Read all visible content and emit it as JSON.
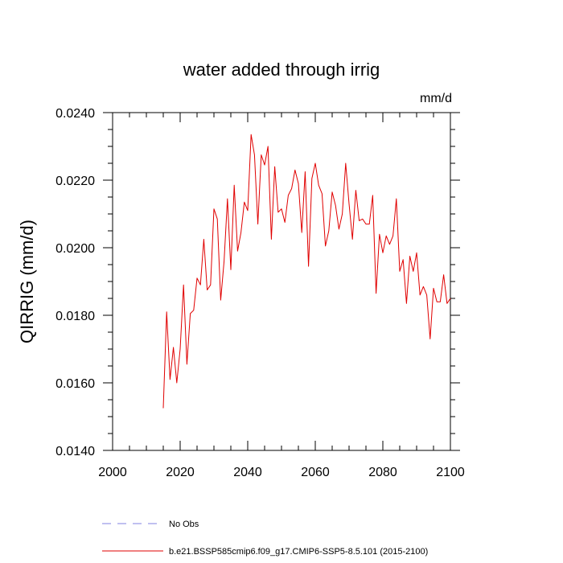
{
  "chart_data": {
    "type": "line",
    "title": "water added through irrig",
    "units_label": "mm/d",
    "ylabel": "QIRRIG  (mm/d)",
    "xlabel": "",
    "xlim": [
      2000,
      2100
    ],
    "ylim": [
      0.014,
      0.024
    ],
    "x_ticks": [
      2000,
      2020,
      2040,
      2060,
      2080,
      2100
    ],
    "x_tick_labels": [
      "2000",
      "2020",
      "2040",
      "2060",
      "2080",
      "2100"
    ],
    "y_ticks": [
      0.014,
      0.016,
      0.018,
      0.02,
      0.022,
      0.024
    ],
    "y_tick_labels": [
      "0.0140",
      "0.0160",
      "0.0180",
      "0.0200",
      "0.0220",
      "0.0240"
    ],
    "grid": false,
    "legend_placement": "bottom-left",
    "legend": [
      {
        "label": "No Obs",
        "style": "dashed",
        "color": "#8080e0"
      },
      {
        "label": "b.e21.BSSP585cmip6.f09_g17.CMIP6-SSP5-8.5.101 (2015-2100)",
        "style": "solid",
        "color": "#e00000"
      }
    ],
    "series": [
      {
        "name": "b.e21.BSSP585cmip6.f09_g17.CMIP6-SSP5-8.5.101 (2015-2100)",
        "color": "#e00000",
        "x": [
          2015,
          2016,
          2017,
          2018,
          2019,
          2020,
          2021,
          2022,
          2023,
          2024,
          2025,
          2026,
          2027,
          2028,
          2029,
          2030,
          2031,
          2032,
          2033,
          2034,
          2035,
          2036,
          2037,
          2038,
          2039,
          2040,
          2041,
          2042,
          2043,
          2044,
          2045,
          2046,
          2047,
          2048,
          2049,
          2050,
          2051,
          2052,
          2053,
          2054,
          2055,
          2056,
          2057,
          2058,
          2059,
          2060,
          2061,
          2062,
          2063,
          2064,
          2065,
          2066,
          2067,
          2068,
          2069,
          2070,
          2071,
          2072,
          2073,
          2074,
          2075,
          2076,
          2077,
          2078,
          2079,
          2080,
          2081,
          2082,
          2083,
          2084,
          2085,
          2086,
          2087,
          2088,
          2089,
          2090,
          2091,
          2092,
          2093,
          2094,
          2095,
          2096,
          2097,
          2098,
          2099,
          2100
        ],
        "values": [
          0.01525,
          0.0181,
          0.0161,
          0.01705,
          0.016,
          0.017,
          0.0189,
          0.01655,
          0.01805,
          0.01815,
          0.0191,
          0.0189,
          0.02025,
          0.01875,
          0.0189,
          0.02115,
          0.02085,
          0.01845,
          0.0196,
          0.02145,
          0.01935,
          0.02185,
          0.0199,
          0.02045,
          0.02135,
          0.0211,
          0.02335,
          0.02275,
          0.0207,
          0.02275,
          0.02245,
          0.023,
          0.02025,
          0.0224,
          0.02105,
          0.02115,
          0.02075,
          0.02155,
          0.02175,
          0.0223,
          0.0219,
          0.02045,
          0.02225,
          0.01945,
          0.02205,
          0.0225,
          0.02185,
          0.0216,
          0.02005,
          0.0205,
          0.02165,
          0.02125,
          0.02055,
          0.021,
          0.0225,
          0.0213,
          0.02025,
          0.0217,
          0.0208,
          0.02085,
          0.0207,
          0.0207,
          0.02155,
          0.01865,
          0.0204,
          0.01985,
          0.02035,
          0.0201,
          0.02035,
          0.02145,
          0.0193,
          0.01965,
          0.01835,
          0.01975,
          0.0193,
          0.01985,
          0.0186,
          0.01885,
          0.0186,
          0.0173,
          0.0188,
          0.0184,
          0.0184,
          0.0192,
          0.01835,
          0.0185
        ]
      }
    ]
  }
}
